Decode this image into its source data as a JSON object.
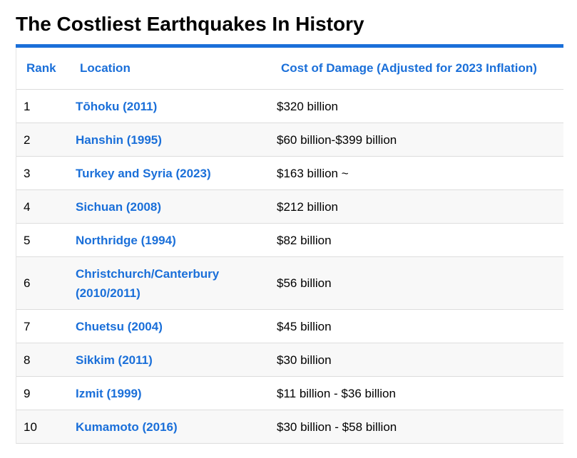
{
  "title": "The Costliest Earthquakes In History",
  "colors": {
    "accent": "#1a6fd9",
    "row_alt": "#f8f8f8",
    "divider": "#dddddd"
  },
  "table": {
    "headers": {
      "rank": "Rank",
      "location": "Location",
      "cost": "Cost of Damage (Adjusted for 2023 Inflation)"
    },
    "rows": [
      {
        "rank": "1",
        "location": "Tōhoku (2011)",
        "cost": "$320 billion"
      },
      {
        "rank": "2",
        "location": "Hanshin (1995)",
        "cost": "$60 billion-$399 billion"
      },
      {
        "rank": "3",
        "location": "Turkey and Syria (2023)",
        "cost": "$163 billion ~"
      },
      {
        "rank": "4",
        "location": "Sichuan (2008)",
        "cost": "$212 billion"
      },
      {
        "rank": "5",
        "location": "Northridge (1994)",
        "cost": "$82 billion"
      },
      {
        "rank": "6",
        "location": "Christchurch/Canterbury (2010/2011)",
        "cost": "$56 billion"
      },
      {
        "rank": "7",
        "location": "Chuetsu (2004)",
        "cost": "$45 billion"
      },
      {
        "rank": "8",
        "location": "Sikkim (2011)",
        "cost": "$30 billion"
      },
      {
        "rank": "9",
        "location": "Izmit (1999)",
        "cost": "$11 billion - $36 billion"
      },
      {
        "rank": "10",
        "location": "Kumamoto (2016)",
        "cost": "$30 billion - $58 billion"
      }
    ]
  }
}
